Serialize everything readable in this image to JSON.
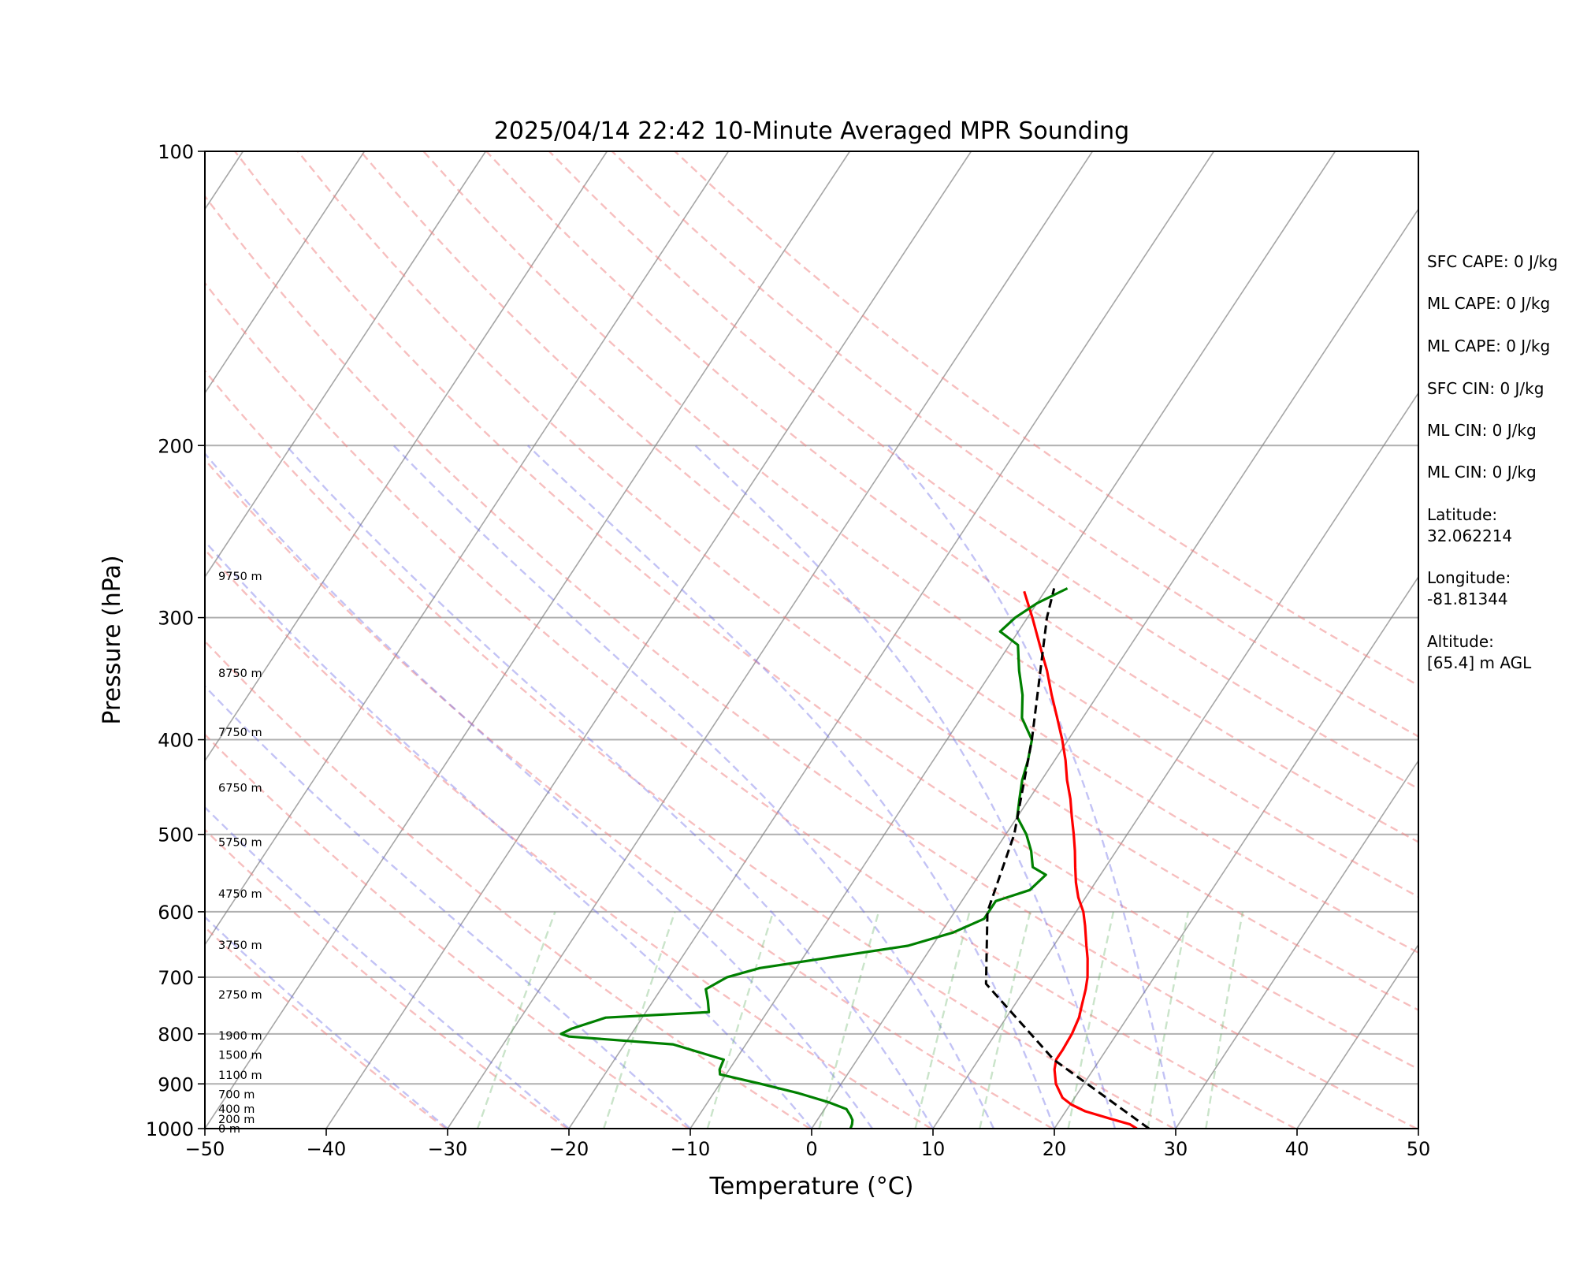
{
  "chart_data": {
    "type": "line",
    "title": "2025/04/14 22:42 10-Minute Averaged MPR Sounding",
    "xlabel": "Temperature (°C)",
    "ylabel": "Pressure (hPa)",
    "xlim": [
      -50,
      50
    ],
    "ylim": [
      1000,
      100
    ],
    "y_scale": "log",
    "grid": true,
    "xticks": [
      "−50",
      "−40",
      "−30",
      "−20",
      "−10",
      "0",
      "10",
      "20",
      "30",
      "40",
      "50"
    ],
    "xtick_values": [
      -50,
      -40,
      -30,
      -20,
      -10,
      0,
      10,
      20,
      30,
      40,
      50
    ],
    "yticks": [
      "100",
      "200",
      "300",
      "400",
      "500",
      "600",
      "700",
      "800",
      "900",
      "1000"
    ],
    "ytick_values": [
      100,
      200,
      300,
      400,
      500,
      600,
      700,
      800,
      900,
      1000
    ],
    "series": [
      {
        "role": "temperature",
        "color": "#ff0000",
        "style": "solid",
        "points": [
          [
            1000,
            26.8
          ],
          [
            990,
            26.0
          ],
          [
            975,
            23.8
          ],
          [
            960,
            21.6
          ],
          [
            945,
            20.1
          ],
          [
            930,
            19.0
          ],
          [
            900,
            17.7
          ],
          [
            870,
            16.8
          ],
          [
            850,
            16.4
          ],
          [
            830,
            16.4
          ],
          [
            800,
            16.3
          ],
          [
            770,
            16.0
          ],
          [
            750,
            15.6
          ],
          [
            720,
            15.0
          ],
          [
            700,
            14.5
          ],
          [
            670,
            13.5
          ],
          [
            650,
            12.7
          ],
          [
            620,
            11.5
          ],
          [
            600,
            10.6
          ],
          [
            580,
            9.4
          ],
          [
            560,
            8.4
          ],
          [
            540,
            7.5
          ],
          [
            520,
            6.6
          ],
          [
            500,
            5.6
          ],
          [
            480,
            4.5
          ],
          [
            460,
            3.4
          ],
          [
            440,
            2.1
          ],
          [
            420,
            0.9
          ],
          [
            400,
            -0.5
          ],
          [
            380,
            -2.1
          ],
          [
            360,
            -3.8
          ],
          [
            340,
            -5.5
          ],
          [
            320,
            -7.5
          ],
          [
            300,
            -9.6
          ],
          [
            282,
            -11.7
          ]
        ]
      },
      {
        "role": "dewpoint",
        "color": "#008000",
        "style": "solid",
        "points": [
          [
            1000,
            3.2
          ],
          [
            990,
            3.1
          ],
          [
            980,
            2.9
          ],
          [
            970,
            2.5
          ],
          [
            955,
            1.8
          ],
          [
            940,
            0.0
          ],
          [
            920,
            -3.0
          ],
          [
            900,
            -6.6
          ],
          [
            880,
            -10.5
          ],
          [
            870,
            -10.8
          ],
          [
            850,
            -11.0
          ],
          [
            820,
            -16.0
          ],
          [
            805,
            -25.0
          ],
          [
            800,
            -25.8
          ],
          [
            790,
            -25.2
          ],
          [
            770,
            -23.0
          ],
          [
            760,
            -14.8
          ],
          [
            740,
            -15.5
          ],
          [
            720,
            -16.3
          ],
          [
            700,
            -15.2
          ],
          [
            685,
            -13.0
          ],
          [
            650,
            -2.0
          ],
          [
            630,
            1.0
          ],
          [
            610,
            2.8
          ],
          [
            600,
            2.8
          ],
          [
            585,
            2.8
          ],
          [
            570,
            5.0
          ],
          [
            550,
            5.5
          ],
          [
            540,
            4.0
          ],
          [
            520,
            3.0
          ],
          [
            500,
            1.7
          ],
          [
            480,
            0.0
          ],
          [
            460,
            -0.8
          ],
          [
            440,
            -1.6
          ],
          [
            420,
            -2.2
          ],
          [
            400,
            -3.0
          ],
          [
            380,
            -5.0
          ],
          [
            360,
            -6.2
          ],
          [
            340,
            -7.8
          ],
          [
            320,
            -9.3
          ],
          [
            310,
            -11.5
          ],
          [
            300,
            -11.0
          ],
          [
            290,
            -10.0
          ],
          [
            280,
            -8.3
          ]
        ]
      },
      {
        "role": "parcel",
        "color": "#000000",
        "style": "dashed",
        "points": [
          [
            1000,
            27.8
          ],
          [
            850,
            16.2
          ],
          [
            711,
            6.5
          ],
          [
            600,
            2.7
          ],
          [
            500,
            0.7
          ],
          [
            400,
            -3.0
          ],
          [
            300,
            -8.4
          ],
          [
            280,
            -9.4
          ]
        ]
      }
    ],
    "background_lines": {
      "isotherms_celsius": [
        -140,
        -130,
        -120,
        -110,
        -100,
        -90,
        -80,
        -70,
        -60,
        -50,
        -40,
        -30,
        -20,
        -10,
        0,
        10,
        20,
        30,
        40,
        50
      ],
      "dry_adiabats_kelvin": [
        243,
        253,
        263,
        273,
        283,
        293,
        303,
        313,
        323,
        333,
        343,
        353,
        363,
        373,
        383,
        393,
        403
      ],
      "moist_adiabats_celsius": [
        -30,
        -20,
        -10,
        0,
        5,
        10,
        15,
        20,
        25,
        30
      ],
      "mixing_ratio_gkg": [
        0.4,
        1,
        2,
        4,
        7,
        10,
        16,
        24,
        32
      ],
      "dry_adiabat_color": "#f08080",
      "moist_adiabat_color": "#6a6ae6",
      "mixing_ratio_color": "#66b266",
      "isotherm_color": "#808080"
    },
    "height_labels": [
      {
        "label": "0 m",
        "p": 1000
      },
      {
        "label": "200 m",
        "p": 978
      },
      {
        "label": "400 m",
        "p": 955
      },
      {
        "label": "700 m",
        "p": 922
      },
      {
        "label": "1100 m",
        "p": 881
      },
      {
        "label": "1500 m",
        "p": 841
      },
      {
        "label": "1900 m",
        "p": 803
      },
      {
        "label": "2750 m",
        "p": 729
      },
      {
        "label": "3750 m",
        "p": 649
      },
      {
        "label": "4750 m",
        "p": 575
      },
      {
        "label": "5750 m",
        "p": 509
      },
      {
        "label": "6750 m",
        "p": 448
      },
      {
        "label": "7750 m",
        "p": 393
      },
      {
        "label": "8750 m",
        "p": 342
      },
      {
        "label": "9750 m",
        "p": 272
      }
    ],
    "annotations": [
      "SFC CAPE: 0 J/kg",
      "ML CAPE: 0 J/kg",
      "ML CAPE: 0 J/kg",
      "SFC CIN: 0 J/kg",
      "ML CIN: 0 J/kg",
      "ML CIN: 0 J/kg",
      "Latitude:",
      "32.062214",
      "Longitude:",
      "-81.81344",
      "Altitude:",
      "[65.4] m AGL"
    ]
  }
}
